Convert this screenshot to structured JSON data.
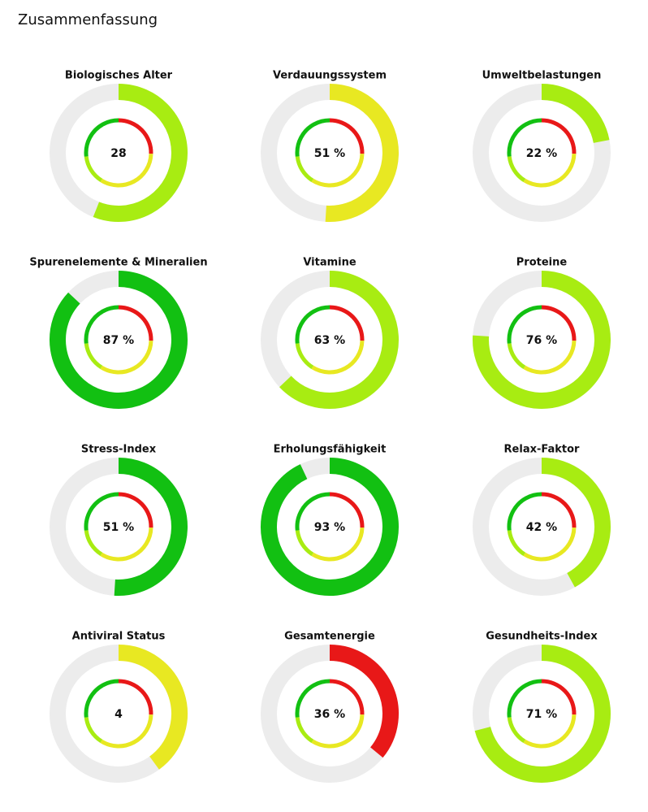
{
  "title": "Zusammenfassung",
  "chart_data": [
    {
      "type": "gauge",
      "title": "Biologisches Alter",
      "value": 28,
      "value_label": "28",
      "ylim": [
        0,
        50
      ],
      "color": "#a8ec12"
    },
    {
      "type": "gauge",
      "title": "Verdauungssystem",
      "value": 51,
      "value_label": "51 %",
      "ylim": [
        0,
        100
      ],
      "color": "#e8e822"
    },
    {
      "type": "gauge",
      "title": "Umweltbelastungen",
      "value": 22,
      "value_label": "22 %",
      "ylim": [
        0,
        100
      ],
      "color": "#a8ec12"
    },
    {
      "type": "gauge",
      "title": "Spurenelemente & Mineralien",
      "value": 87,
      "value_label": "87 %",
      "ylim": [
        0,
        100
      ],
      "color": "#12c012"
    },
    {
      "type": "gauge",
      "title": "Vitamine",
      "value": 63,
      "value_label": "63 %",
      "ylim": [
        0,
        100
      ],
      "color": "#a8ec12"
    },
    {
      "type": "gauge",
      "title": "Proteine",
      "value": 76,
      "value_label": "76 %",
      "ylim": [
        0,
        100
      ],
      "color": "#a8ec12"
    },
    {
      "type": "gauge",
      "title": "Stress-Index",
      "value": 51,
      "value_label": "51 %",
      "ylim": [
        0,
        100
      ],
      "color": "#12c012"
    },
    {
      "type": "gauge",
      "title": "Erholungsfähigkeit",
      "value": 93,
      "value_label": "93 %",
      "ylim": [
        0,
        100
      ],
      "color": "#12c012"
    },
    {
      "type": "gauge",
      "title": "Relax-Faktor",
      "value": 42,
      "value_label": "42 %",
      "ylim": [
        0,
        100
      ],
      "color": "#a8ec12"
    },
    {
      "type": "gauge",
      "title": "Antiviral Status",
      "value": 4,
      "value_label": "4",
      "ylim": [
        0,
        10
      ],
      "color": "#e8e822"
    },
    {
      "type": "gauge",
      "title": "Gesamtenergie",
      "value": 36,
      "value_label": "36 %",
      "ylim": [
        0,
        100
      ],
      "color": "#e81818"
    },
    {
      "type": "gauge",
      "title": "Gesundheits-Index",
      "value": 71,
      "value_label": "71 %",
      "ylim": [
        0,
        100
      ],
      "color": "#a8ec12"
    }
  ]
}
